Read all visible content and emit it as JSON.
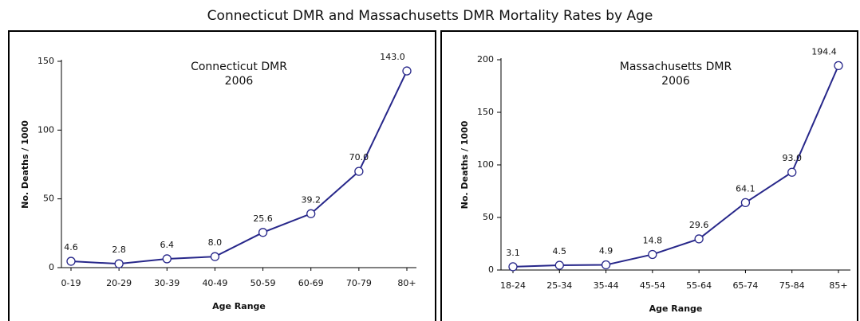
{
  "title": "Connecticut DMR and Massachusetts DMR Mortality Rates by Age",
  "chart_data": [
    {
      "type": "line",
      "title": "Connecticut DMR",
      "subtitle": "2006",
      "x_label": "Age Range",
      "y_label": "No. Deaths / 1000",
      "categories": [
        "0-19",
        "20-29",
        "30-39",
        "40-49",
        "50-59",
        "60-69",
        "70-79",
        "80+"
      ],
      "values": [
        4.6,
        2.8,
        6.4,
        8.0,
        25.6,
        39.2,
        70.0,
        143.0
      ],
      "value_labels": [
        "4.6",
        "2.8",
        "6.4",
        "8.0",
        "25.6",
        "39.2",
        "70.0",
        "143.0"
      ],
      "color": "#27278a",
      "ylim": [
        0,
        150
      ],
      "yticks": [
        0,
        50,
        100,
        150
      ]
    },
    {
      "type": "line",
      "title": "Massachusetts DMR",
      "subtitle": "2006",
      "x_label": "Age Range",
      "y_label": "No. Deaths / 1000",
      "categories": [
        "18-24",
        "25-34",
        "35-44",
        "45-54",
        "55-64",
        "65-74",
        "75-84",
        "85+"
      ],
      "values": [
        3.1,
        4.5,
        4.9,
        14.8,
        29.6,
        64.1,
        93.0,
        194.4
      ],
      "value_labels": [
        "3.1",
        "4.5",
        "4.9",
        "14.8",
        "29.6",
        "64.1",
        "93.0",
        "194.4"
      ],
      "color": "#27278a",
      "ylim": [
        0,
        200
      ],
      "yticks": [
        0,
        50,
        100,
        150,
        200
      ]
    }
  ]
}
